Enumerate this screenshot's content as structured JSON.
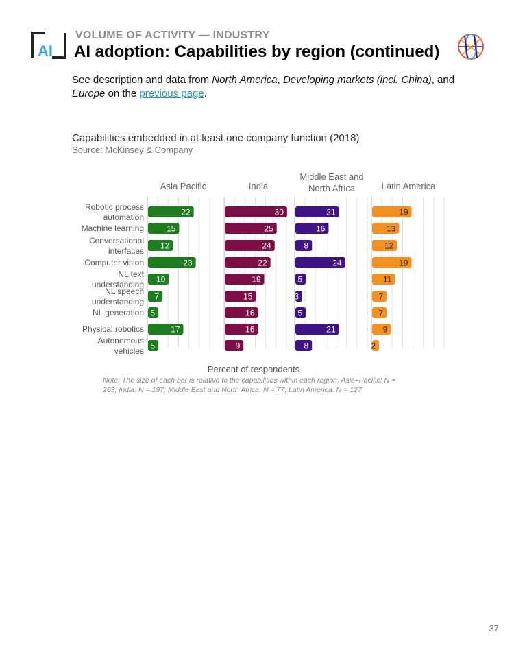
{
  "header": {
    "eyebrow": "VOLUME OF ACTIVITY — INDUSTRY",
    "title": "AI adoption: Capabilities by region (continued)"
  },
  "intro": {
    "text_1": "See description and data from ",
    "em_1": "North America",
    "text_2": ", ",
    "em_2": "Developing markets (incl. China)",
    "text_3": ", and ",
    "em_3": "Europe",
    "text_4": " on the ",
    "link": "previous page",
    "text_5": "."
  },
  "chart_data": {
    "type": "bar",
    "orientation": "horizontal",
    "title": "Capabilities embedded in at least one company function (2018)",
    "source": "Source: McKinsey & Company",
    "xlabel": "Percent of respondents",
    "categories": [
      "Robotic process automation",
      "Machine learning",
      "Conversational interfaces",
      "Computer vision",
      "NL text understanding",
      "NL speech understanding",
      "NL generation",
      "Physical robotics",
      "Autonomous vehicles"
    ],
    "series": [
      {
        "name": "Asia Pacific",
        "color": "#1e7d1e",
        "values": [
          22,
          15,
          12,
          23,
          10,
          7,
          5,
          17,
          5
        ]
      },
      {
        "name": "India",
        "color": "#7d0d45",
        "values": [
          30,
          25,
          24,
          22,
          19,
          15,
          16,
          16,
          9
        ]
      },
      {
        "name": "Middle East and North Africa",
        "color": "#3f1286",
        "values": [
          21,
          16,
          8,
          24,
          5,
          3,
          5,
          21,
          8
        ]
      },
      {
        "name": "Latin America",
        "color": "#f3901f",
        "values": [
          19,
          13,
          12,
          19,
          11,
          7,
          7,
          9,
          2
        ]
      }
    ],
    "grid": true,
    "note": "Note: The size of each bar is relative to the capabilities within each region; Asia–Pacific: N = 263; India: N = 197; Middle East and North Africa: N = 77; Latin America: N = 127"
  },
  "footer": {
    "page_number": "37"
  }
}
